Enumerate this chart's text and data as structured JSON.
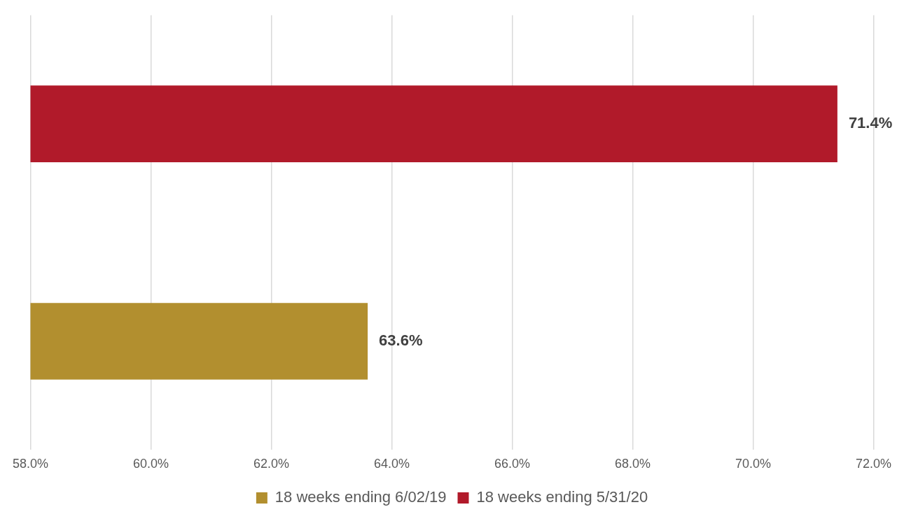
{
  "chart_data": {
    "type": "bar",
    "orientation": "horizontal",
    "categories": [
      null
    ],
    "series": [
      {
        "name": "18 weeks ending 6/02/19",
        "color": "#b28f2f",
        "values": [
          63.6
        ],
        "value_labels": [
          "63.6%"
        ]
      },
      {
        "name": "18 weeks ending 5/31/20",
        "color": "#b11a2a",
        "values": [
          71.4
        ],
        "value_labels": [
          "71.4%"
        ]
      }
    ],
    "xlim": [
      58,
      72
    ],
    "xticks": [
      {
        "value": 58,
        "label": "58.0%"
      },
      {
        "value": 60,
        "label": "60.0%"
      },
      {
        "value": 62,
        "label": "62.0%"
      },
      {
        "value": 64,
        "label": "64.0%"
      },
      {
        "value": 66,
        "label": "66.0%"
      },
      {
        "value": 68,
        "label": "68.0%"
      },
      {
        "value": 70,
        "label": "70.0%"
      },
      {
        "value": 72,
        "label": "72.0%"
      }
    ],
    "grid": "x",
    "legend": "bottom"
  }
}
